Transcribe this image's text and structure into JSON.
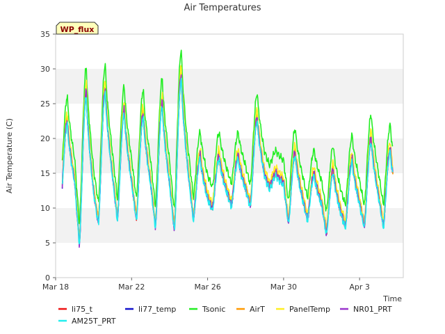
{
  "chart_data": {
    "type": "line",
    "title": "Air Temperatures",
    "xlabel": "Time",
    "ylabel": "Air Temperature (C)",
    "badge": "WP_flux",
    "ylim": [
      0,
      35
    ],
    "xlim": [
      0,
      18.3
    ],
    "yticks": [
      0,
      5,
      10,
      15,
      20,
      25,
      30,
      35
    ],
    "xticks": [
      {
        "day": 0,
        "label": "Mar 18"
      },
      {
        "day": 4,
        "label": "Mar 22"
      },
      {
        "day": 8,
        "label": "Mar 26"
      },
      {
        "day": 12,
        "label": "Mar 30"
      },
      {
        "day": 16,
        "label": "Apr 3"
      }
    ],
    "grid": "horizontal bands",
    "legend_position": "bottom",
    "daily": {
      "days": [
        0,
        1,
        2,
        3,
        4,
        5,
        6,
        7,
        8,
        9,
        10,
        11,
        12,
        13,
        14,
        15,
        16,
        17
      ],
      "min": [
        9.5,
        5.0,
        8.0,
        8.5,
        8.5,
        7.5,
        7.0,
        8.5,
        10.0,
        10.5,
        10.5,
        13.0,
        8.0,
        8.5,
        6.5,
        7.5,
        7.5,
        7.5
      ],
      "max": [
        22.5,
        26.5,
        27.0,
        24.0,
        23.5,
        25.0,
        29.0,
        17.5,
        17.5,
        17.5,
        23.0,
        15.0,
        18.0,
        15.0,
        15.5,
        17.0,
        20.0,
        18.5
      ]
    },
    "series": [
      {
        "name": "li75_t",
        "color": "#ee1111",
        "offset": 0.0,
        "amp": 1.0
      },
      {
        "name": "li77_temp",
        "color": "#1111cc",
        "offset": 0.0,
        "amp": 1.0
      },
      {
        "name": "Tsonic",
        "color": "#22ee22",
        "offset": 3.2,
        "amp": 1.05
      },
      {
        "name": "AirT",
        "color": "#ff9900",
        "offset": 0.2,
        "amp": 0.98
      },
      {
        "name": "PanelTemp",
        "color": "#ffee22",
        "offset": 0.8,
        "amp": 1.06
      },
      {
        "name": "NR01_PRT",
        "color": "#9933cc",
        "offset": 0.0,
        "amp": 1.03
      },
      {
        "name": "AM25T_PRT",
        "color": "#22eeee",
        "offset": -0.4,
        "amp": 1.0
      }
    ]
  }
}
